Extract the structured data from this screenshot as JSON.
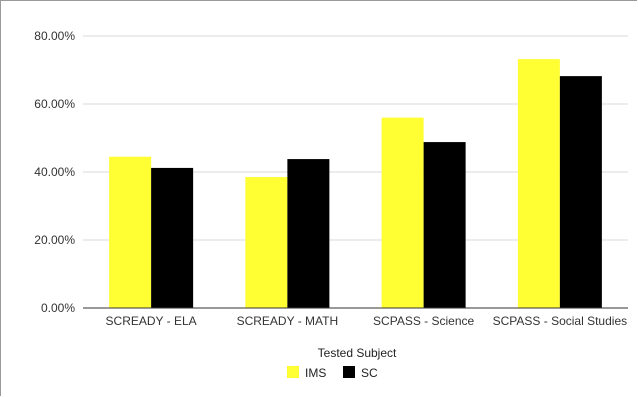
{
  "chart_data": {
    "type": "bar",
    "categories": [
      "SCREADY - ELA",
      "SCREADY - MATH",
      "SCPASS - Science",
      "SCPASS - Social Studies"
    ],
    "series": [
      {
        "name": "IMS",
        "color": "#ffff33",
        "values": [
          44.5,
          38.5,
          56.0,
          73.2
        ]
      },
      {
        "name": "SC",
        "color": "#000000",
        "values": [
          41.2,
          43.8,
          48.8,
          68.2
        ]
      }
    ],
    "yticks": [
      "0.00%",
      "20.00%",
      "40.00%",
      "60.00%",
      "80.00%"
    ],
    "ytick_values": [
      0,
      20,
      40,
      60,
      80
    ],
    "ylim": [
      0,
      80
    ],
    "xlabel": "Tested Subject",
    "ylabel": "",
    "title": "",
    "grid": true,
    "legend": "bottom"
  }
}
